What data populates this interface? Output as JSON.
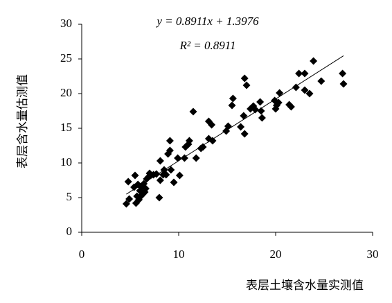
{
  "chart_data": {
    "type": "scatter",
    "x_label": "表层土壤含水量实测值",
    "y_label": "表层含水量估测值",
    "xlim": [
      0,
      30
    ],
    "xticks": [
      0,
      10,
      20,
      30
    ],
    "ylim": [
      0,
      30
    ],
    "yticks": [
      0,
      5,
      10,
      15,
      20,
      25,
      30
    ],
    "grid": false,
    "color": "#000000",
    "trendline": {
      "equation": "y = 0.8911x + 1.3976",
      "slope": 0.8911,
      "intercept": 1.3976,
      "r2_label": "R² = 0.8911",
      "color": "#000000"
    },
    "x": [
      4.6,
      4.8,
      4.9,
      5.4,
      5.5,
      5.6,
      5.7,
      5.8,
      5.9,
      6.0,
      6.1,
      6.2,
      6.3,
      6.4,
      6.5,
      6.6,
      6.7,
      6.9,
      7.0,
      7.4,
      7.7,
      8.0,
      8.1,
      8.1,
      8.4,
      8.5,
      8.7,
      8.9,
      9.1,
      9.1,
      9.2,
      9.5,
      9.9,
      10.1,
      10.6,
      10.7,
      11.0,
      11.1,
      11.5,
      11.8,
      12.3,
      12.5,
      13.1,
      13.1,
      13.4,
      13.5,
      14.9,
      15.1,
      15.5,
      15.6,
      16.4,
      16.7,
      16.8,
      16.8,
      17.0,
      17.4,
      17.7,
      17.9,
      18.4,
      18.5,
      18.6,
      19.9,
      20.0,
      20.1,
      20.3,
      20.4,
      21.4,
      21.6,
      22.1,
      22.4,
      23.0,
      23.0,
      23.5,
      23.9,
      24.7,
      26.9,
      27.0
    ],
    "values": [
      4.1,
      7.3,
      4.8,
      6.5,
      8.2,
      4.2,
      5.2,
      6.9,
      4.7,
      6.0,
      5.2,
      6.5,
      5.5,
      7.0,
      5.8,
      6.3,
      7.7,
      8.0,
      8.5,
      8.3,
      8.4,
      5.0,
      7.5,
      10.3,
      8.3,
      9.0,
      8.3,
      11.3,
      11.8,
      13.2,
      9.0,
      7.2,
      10.7,
      8.2,
      10.7,
      12.3,
      12.7,
      13.2,
      17.4,
      10.7,
      12.1,
      12.3,
      16.0,
      13.5,
      15.5,
      13.2,
      14.6,
      15.3,
      18.3,
      19.3,
      15.2,
      16.8,
      14.2,
      22.2,
      21.2,
      17.8,
      18.2,
      17.7,
      18.8,
      17.5,
      16.5,
      19.0,
      17.8,
      18.3,
      18.7,
      20.1,
      18.4,
      18.1,
      20.9,
      22.9,
      22.9,
      20.5,
      20.0,
      24.7,
      21.8,
      22.9,
      21.4
    ]
  }
}
